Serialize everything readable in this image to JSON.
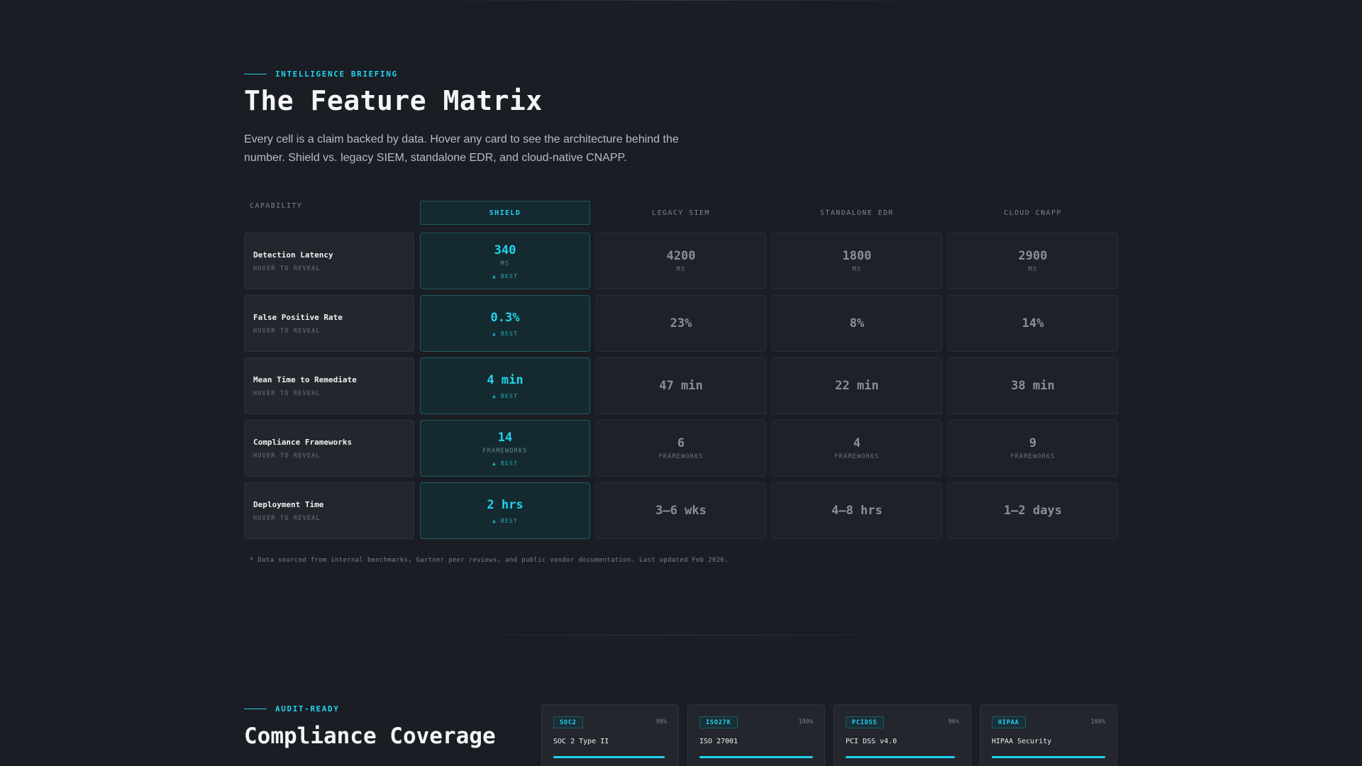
{
  "briefing": {
    "eyebrow": "INTELLIGENCE BRIEFING",
    "title": "The Feature Matrix",
    "lead": "Every cell is a claim backed by data. Hover any card to see the architecture behind the number. Shield vs. legacy SIEM, standalone EDR, and cloud-native CNAPP."
  },
  "matrix": {
    "headers": [
      "CAPABILITY",
      "SHIELD",
      "LEGACY SIEM",
      "STANDALONE EDR",
      "CLOUD CNAPP"
    ],
    "hover_hint": "HOVER TO REVEAL",
    "best_label": "▲ BEST",
    "rows": [
      {
        "name": "Detection Latency",
        "values": [
          "340",
          "4200",
          "1800",
          "2900"
        ],
        "unit": "MS"
      },
      {
        "name": "False Positive Rate",
        "values": [
          "0.3%",
          "23%",
          "8%",
          "14%"
        ],
        "unit": ""
      },
      {
        "name": "Mean Time to Remediate",
        "values": [
          "4 min",
          "47 min",
          "22 min",
          "38 min"
        ],
        "unit": ""
      },
      {
        "name": "Compliance Frameworks",
        "values": [
          "14",
          "6",
          "4",
          "9"
        ],
        "unit": "FRAMEWORKS"
      },
      {
        "name": "Deployment Time",
        "values": [
          "2 hrs",
          "3–6 wks",
          "4–8 hrs",
          "1–2 days"
        ],
        "unit": ""
      }
    ],
    "footnote": "* Data sourced from internal benchmarks, Gartner peer reviews, and public vendor documentation. Last updated Feb 2026."
  },
  "compliance": {
    "eyebrow": "AUDIT-READY",
    "title": "Compliance Coverage",
    "cards": [
      {
        "tag": "SOC2",
        "pct": "98%",
        "fill": 0.98,
        "name": "SOC 2 Type II"
      },
      {
        "tag": "ISO27K",
        "pct": "100%",
        "fill": 1.0,
        "name": "ISO 27001"
      },
      {
        "tag": "PCIDSS",
        "pct": "96%",
        "fill": 0.96,
        "name": "PCI DSS v4.0"
      },
      {
        "tag": "HIPAA",
        "pct": "100%",
        "fill": 1.0,
        "name": "HIPAA Security"
      }
    ]
  },
  "colors": {
    "accent": "#22d3ee",
    "background": "#1a1d23"
  }
}
